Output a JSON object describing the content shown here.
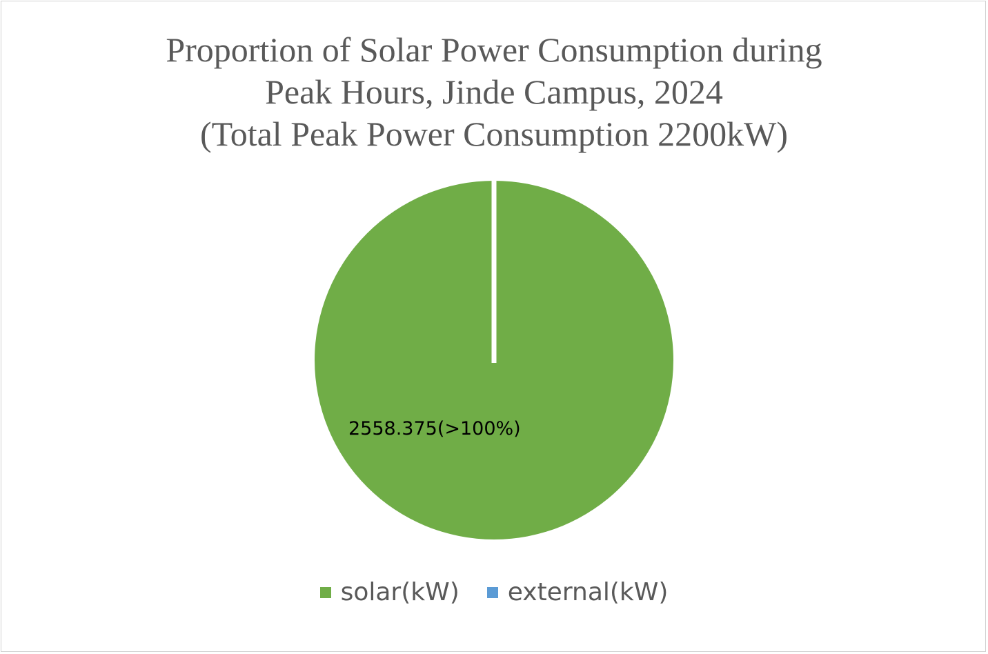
{
  "chart_data": {
    "type": "pie",
    "title": [
      "Proportion of Solar Power Consumption during",
      "Peak Hours, Jinde Campus, 2024",
      "(Total Peak Power Consumption 2200kW)"
    ],
    "categories": [
      "solar(kW)",
      "external(kW)"
    ],
    "values": [
      2558.375,
      0
    ],
    "colors": [
      "#70ad47",
      "#5b9bd5"
    ],
    "data_labels": [
      "2558.375(>100%)"
    ],
    "legend": "bottom"
  }
}
